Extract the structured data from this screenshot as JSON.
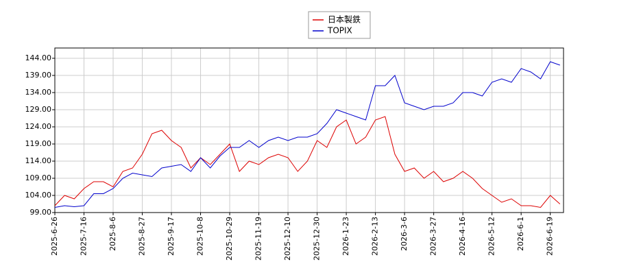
{
  "chart_data": {
    "type": "line",
    "categories": [
      "2025-6-26",
      null,
      null,
      "2025-7-16",
      null,
      null,
      "2025-8-6",
      null,
      null,
      "2025-8-27",
      null,
      null,
      "2025-9-17",
      null,
      null,
      "2025-10-8",
      null,
      null,
      "2025-10-29",
      null,
      null,
      "2025-11-19",
      null,
      null,
      "2025-12-10",
      null,
      null,
      "2025-12-30",
      null,
      null,
      "2026-1-23",
      null,
      null,
      "2026-2-13",
      null,
      null,
      "2026-3-6",
      null,
      null,
      "2026-3-27",
      null,
      null,
      "2026-4-16",
      null,
      null,
      "2026-5-12",
      null,
      null,
      "2026-6-1",
      null,
      null,
      "2026-6-19",
      null
    ],
    "series": [
      {
        "name": "日本製鉄",
        "color": "#dd0000",
        "values": [
          101,
          104,
          103,
          106,
          108,
          108,
          106.5,
          111,
          112,
          116,
          122,
          123,
          120,
          118,
          112,
          115,
          113,
          116,
          119,
          111,
          114,
          113,
          115,
          116,
          115,
          111,
          114,
          120,
          118,
          124,
          126,
          119,
          121,
          126,
          127,
          116,
          111,
          112,
          109,
          111,
          108,
          109,
          111,
          109,
          106,
          104,
          102,
          103,
          101,
          101,
          100.5,
          104,
          101.5
        ]
      },
      {
        "name": "TOPIX",
        "color": "#0000cc",
        "values": [
          100.5,
          101,
          100.7,
          101,
          104.5,
          104.5,
          106,
          109,
          110.5,
          110,
          109.5,
          112,
          112.5,
          113,
          111,
          115,
          112,
          115.5,
          118,
          118,
          120,
          118,
          120,
          121,
          120,
          121,
          121,
          122,
          125,
          129,
          128,
          127,
          126,
          136,
          136,
          139,
          131,
          130,
          129,
          130,
          130,
          131,
          134,
          134,
          133,
          137,
          138,
          137,
          141,
          140,
          138,
          143,
          142
        ]
      }
    ],
    "ylim": [
      99,
      147
    ],
    "yticks": [
      {
        "value": 99,
        "label": "99.00"
      },
      {
        "value": 104,
        "label": "104.00"
      },
      {
        "value": 109,
        "label": "109.00"
      },
      {
        "value": 114,
        "label": "114.00"
      },
      {
        "value": 119,
        "label": "119.00"
      },
      {
        "value": 124,
        "label": "124.00"
      },
      {
        "value": 129,
        "label": "129.00"
      },
      {
        "value": 134,
        "label": "134.00"
      },
      {
        "value": 139,
        "label": "139.00"
      },
      {
        "value": 144,
        "label": "144.00"
      }
    ],
    "grid": true
  }
}
